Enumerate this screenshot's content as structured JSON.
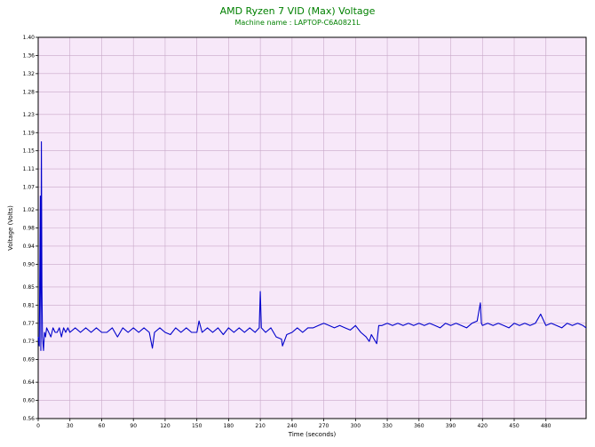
{
  "title": "AMD Ryzen 7 VID (Max) Voltage",
  "subtitle": "Machine name : LAPTOP-C6A0821L",
  "colors": {
    "plot_background": "#f7e8f9",
    "grid": "#c9a9c9",
    "series": "#0000cc",
    "title": "#008000"
  },
  "chart_data": {
    "type": "line",
    "title": "AMD Ryzen 7 VID (Max) Voltage",
    "subtitle": "Machine name : LAPTOP-C6A0821L",
    "xlabel": "Time (seconds)",
    "ylabel": "Voltage (Volts)",
    "xlim": [
      0,
      518
    ],
    "ylim": [
      0.56,
      1.4
    ],
    "grid": true,
    "x_ticks": [
      0,
      30,
      60,
      90,
      120,
      150,
      180,
      210,
      240,
      270,
      300,
      330,
      360,
      390,
      420,
      450,
      480
    ],
    "x_tick_labels": [
      "0",
      "30",
      "60",
      "90",
      "120",
      "150",
      "180",
      "210",
      "240",
      "270",
      "300",
      "330",
      "360",
      "390",
      "420",
      "450",
      "480"
    ],
    "y_ticks": [
      0.56,
      0.6,
      0.64,
      0.69,
      0.73,
      0.77,
      0.81,
      0.85,
      0.9,
      0.94,
      0.98,
      1.02,
      1.07,
      1.11,
      1.15,
      1.19,
      1.23,
      1.28,
      1.32,
      1.36,
      1.4
    ],
    "y_tick_labels": [
      "0.56",
      "0.60",
      "0.64",
      "0.69",
      "0.73",
      "0.77",
      "0.81",
      "0.85",
      "0.90",
      "0.94",
      "0.98",
      "1.02",
      "1.07",
      "1.11",
      "1.15",
      "1.19",
      "1.23",
      "1.28",
      "1.32",
      "1.36",
      "1.40"
    ],
    "series": [
      {
        "x": [
          0,
          1,
          2,
          2.5,
          3,
          3.5,
          4,
          5,
          6,
          7,
          8,
          10,
          12,
          14,
          16,
          18,
          20,
          22,
          24,
          26,
          28,
          30,
          35,
          40,
          45,
          50,
          55,
          60,
          65,
          70,
          75,
          80,
          85,
          90,
          95,
          100,
          105,
          108,
          110,
          115,
          120,
          125,
          130,
          135,
          140,
          145,
          150,
          152,
          155,
          160,
          165,
          170,
          175,
          180,
          185,
          190,
          195,
          200,
          205,
          209,
          210,
          211,
          215,
          220,
          225,
          230,
          231,
          235,
          240,
          245,
          250,
          255,
          260,
          265,
          270,
          275,
          280,
          285,
          290,
          295,
          300,
          305,
          310,
          313,
          315,
          320,
          322,
          325,
          330,
          335,
          340,
          345,
          350,
          355,
          360,
          365,
          370,
          375,
          380,
          385,
          390,
          395,
          400,
          405,
          410,
          415,
          418,
          419,
          420,
          425,
          430,
          435,
          440,
          445,
          450,
          455,
          460,
          465,
          470,
          475,
          480,
          485,
          490,
          495,
          500,
          505,
          510,
          515,
          518
        ],
        "y": [
          0.74,
          0.72,
          1.05,
          0.71,
          1.17,
          0.85,
          0.74,
          0.71,
          0.75,
          0.74,
          0.76,
          0.75,
          0.74,
          0.76,
          0.75,
          0.75,
          0.76,
          0.74,
          0.76,
          0.75,
          0.76,
          0.75,
          0.76,
          0.75,
          0.76,
          0.75,
          0.76,
          0.75,
          0.75,
          0.76,
          0.74,
          0.76,
          0.75,
          0.76,
          0.75,
          0.76,
          0.75,
          0.715,
          0.75,
          0.76,
          0.75,
          0.745,
          0.76,
          0.75,
          0.76,
          0.75,
          0.75,
          0.775,
          0.75,
          0.76,
          0.75,
          0.76,
          0.745,
          0.76,
          0.75,
          0.76,
          0.75,
          0.76,
          0.75,
          0.76,
          0.84,
          0.76,
          0.75,
          0.76,
          0.74,
          0.735,
          0.72,
          0.745,
          0.75,
          0.76,
          0.75,
          0.76,
          0.76,
          0.765,
          0.77,
          0.765,
          0.76,
          0.765,
          0.76,
          0.755,
          0.765,
          0.75,
          0.74,
          0.73,
          0.745,
          0.725,
          0.765,
          0.765,
          0.77,
          0.765,
          0.77,
          0.765,
          0.77,
          0.765,
          0.77,
          0.765,
          0.77,
          0.765,
          0.76,
          0.77,
          0.765,
          0.77,
          0.765,
          0.76,
          0.77,
          0.775,
          0.815,
          0.77,
          0.765,
          0.77,
          0.765,
          0.77,
          0.765,
          0.76,
          0.77,
          0.765,
          0.77,
          0.765,
          0.77,
          0.79,
          0.765,
          0.77,
          0.765,
          0.76,
          0.77,
          0.765,
          0.77,
          0.765,
          0.76
        ]
      }
    ]
  }
}
